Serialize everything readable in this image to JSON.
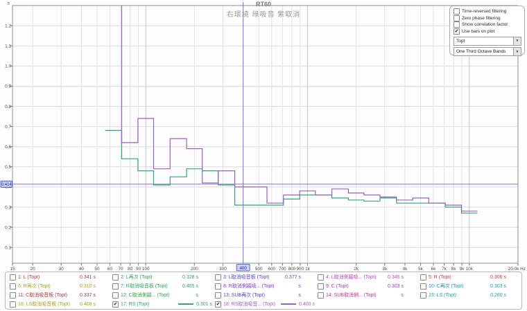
{
  "window": {
    "title": "RT60",
    "subtitle": "右環繞 綠吸音 紫取消"
  },
  "controls": {
    "checkboxes": [
      {
        "label": "Time-reversed filtering",
        "checked": false
      },
      {
        "label": "Zero phase filtering",
        "checked": false
      },
      {
        "label": "Show correlation factor",
        "checked": false
      },
      {
        "label": "Use bars on plot",
        "checked": true
      }
    ],
    "dropdowns": [
      {
        "value": "Topt"
      },
      {
        "value": "One Third Octave Bands"
      }
    ]
  },
  "chart_data": {
    "type": "bar",
    "title": "RT60",
    "subtitle": "右環繞 綠吸音 紫取消",
    "x_axis": {
      "unit": "Hz",
      "scale": "log",
      "min": 15,
      "max": 20000,
      "ticks": [
        [
          15,
          "15"
        ],
        [
          20,
          "20"
        ],
        [
          30,
          "30"
        ],
        [
          40,
          "40"
        ],
        [
          50,
          "50"
        ],
        [
          60,
          "60"
        ],
        [
          70,
          "70"
        ],
        [
          80,
          "80"
        ],
        [
          90,
          "90"
        ],
        [
          100,
          "100"
        ],
        [
          200,
          "200"
        ],
        [
          300,
          "300"
        ],
        [
          500,
          "500"
        ],
        [
          600,
          "600"
        ],
        [
          700,
          "700"
        ],
        [
          800,
          "800"
        ],
        [
          900,
          "900"
        ],
        [
          1000,
          "1k"
        ],
        [
          2000,
          "2k"
        ],
        [
          3000,
          "3k"
        ],
        [
          4000,
          "4k"
        ],
        [
          5000,
          "5k"
        ],
        [
          6000,
          "6k"
        ],
        [
          7000,
          "7k"
        ],
        [
          8000,
          "8k"
        ],
        [
          9000,
          "9k"
        ],
        [
          10000,
          "10k"
        ],
        [
          20000,
          "20.0k Hz"
        ]
      ]
    },
    "y_axis": {
      "unit": "s",
      "min": 0.02,
      "max": 1.28,
      "ticks": [
        0.1,
        0.2,
        0.3,
        0.4,
        0.5,
        0.6,
        0.7,
        0.8,
        0.9,
        1.0,
        1.1,
        1.2
      ]
    },
    "bands_hz": [
      63,
      80,
      100,
      125,
      160,
      200,
      250,
      315,
      400,
      500,
      630,
      800,
      1000,
      1250,
      1600,
      2000,
      2500,
      3150,
      4000,
      5000,
      6300,
      8000,
      10000
    ],
    "series": [
      {
        "name": "17: RS (Topt)",
        "color": "#2fa678",
        "values": [
          0.68,
          0.54,
          0.48,
          0.41,
          0.45,
          0.49,
          0.48,
          0.41,
          0.31,
          0.31,
          0.31,
          0.34,
          0.36,
          0.36,
          0.345,
          0.335,
          0.33,
          0.345,
          0.32,
          0.32,
          0.32,
          0.3,
          0.27
        ]
      },
      {
        "name": "18: RS取消吸音... (Topt)",
        "color": "#9a5fc0",
        "values": [
          1.45,
          0.62,
          0.74,
          0.49,
          0.64,
          0.59,
          0.42,
          0.48,
          0.4,
          0.4,
          0.32,
          0.36,
          0.38,
          0.36,
          0.39,
          0.37,
          0.36,
          0.35,
          0.335,
          0.345,
          0.32,
          0.31,
          0.28
        ]
      }
    ],
    "cursor": {
      "freq_hz": 400,
      "freq_label": "400",
      "value_label": "0.414",
      "value_s": 0.414,
      "color": "#7878cc"
    }
  },
  "legend": {
    "entries": [
      {
        "label": "1: L (Topt)",
        "value": "0.341 s",
        "color": "#c03030",
        "checked": false
      },
      {
        "label": "2: L再次 (Topt)",
        "value": "0.328 s",
        "color": "#2f9e44",
        "checked": false
      },
      {
        "label": "3: L取消吸音板 (Topt)",
        "value": "0.377 s",
        "color": "#5048c8",
        "checked": false
      },
      {
        "label": "4: L取消側牆吸... (Topt)",
        "value": "0.345 s",
        "color": "#c040c0",
        "checked": false
      },
      {
        "label": "5: R (Topt)",
        "value": "0.306 s",
        "color": "#e03030",
        "checked": false
      },
      {
        "label": "6: R再次 (Topt)",
        "value": "0.310 s",
        "color": "#a8a020",
        "checked": false
      },
      {
        "label": "7: R取消吸音板 (Topt)",
        "value": "0.405 s",
        "color": "#2aa368",
        "checked": false
      },
      {
        "label": "8: R取消側牆吸... (Topt)",
        "value": "s",
        "color": "#8838c8",
        "checked": false
      },
      {
        "label": "9: C (Topt)",
        "value": "0.303 s",
        "color": "#9a40c0",
        "checked": false
      },
      {
        "label": "10: C再次 (Topt)",
        "value": "0.303 s",
        "color": "#2090b0",
        "checked": false
      },
      {
        "label": "11: C取消吸音板 (Topt)",
        "value": "0.337 s",
        "color": "#a03838",
        "checked": false
      },
      {
        "label": "12: C取消側牆... (Topt)",
        "value": "s",
        "color": "#2f9e44",
        "checked": false
      },
      {
        "label": "13: SUB再次 (Topt)",
        "value": "s",
        "color": "#5048c8",
        "checked": false
      },
      {
        "label": "14: SUB取消側... (Topt)",
        "value": "s",
        "color": "#c03090",
        "checked": false
      },
      {
        "label": "15: LS (Topt)",
        "value": "0.260 s",
        "color": "#20a0a0",
        "checked": false,
        "italic": true
      },
      {
        "label": "16: LS取消吸音板 (Topt)",
        "value": "0.408 s",
        "color": "#a8a020",
        "checked": false
      },
      {
        "label": "17: RS (Topt)",
        "value": "0.301 s",
        "color": "#2aa368",
        "checked": true,
        "swatch": "#2fa678"
      },
      {
        "label": "18: RS取消吸音... (Topt)",
        "value": "0.400 s",
        "color": "#9a5fc0",
        "checked": true,
        "swatch": "#9a5fc0"
      }
    ]
  }
}
